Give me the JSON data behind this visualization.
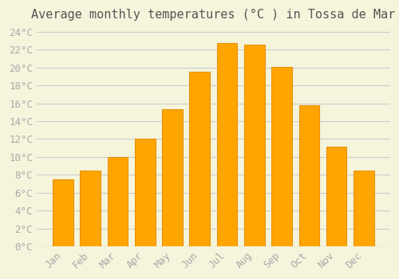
{
  "months": [
    "Jan",
    "Feb",
    "Mar",
    "Apr",
    "May",
    "Jun",
    "Jul",
    "Aug",
    "Sep",
    "Oct",
    "Nov",
    "Dec"
  ],
  "temperatures": [
    7.5,
    8.5,
    10.0,
    12.0,
    15.3,
    19.5,
    22.7,
    22.6,
    20.1,
    15.8,
    11.1,
    8.5
  ],
  "bar_color": "#FFA500",
  "bar_edge_color": "#E8920A",
  "background_color": "#F5F5DC",
  "grid_color": "#CCCCCC",
  "title": "Average monthly temperatures (°C ) in Tossa de Mar",
  "title_fontsize": 11,
  "ylabel_ticks": [
    "0°C",
    "2°C",
    "4°C",
    "6°C",
    "8°C",
    "10°C",
    "12°C",
    "14°C",
    "16°C",
    "18°C",
    "20°C",
    "22°C",
    "24°C"
  ],
  "ytick_values": [
    0,
    2,
    4,
    6,
    8,
    10,
    12,
    14,
    16,
    18,
    20,
    22,
    24
  ],
  "ylim": [
    0,
    24.5
  ],
  "tick_label_color": "#AAAAAA",
  "axis_label_fontsize": 9,
  "font_family": "monospace"
}
